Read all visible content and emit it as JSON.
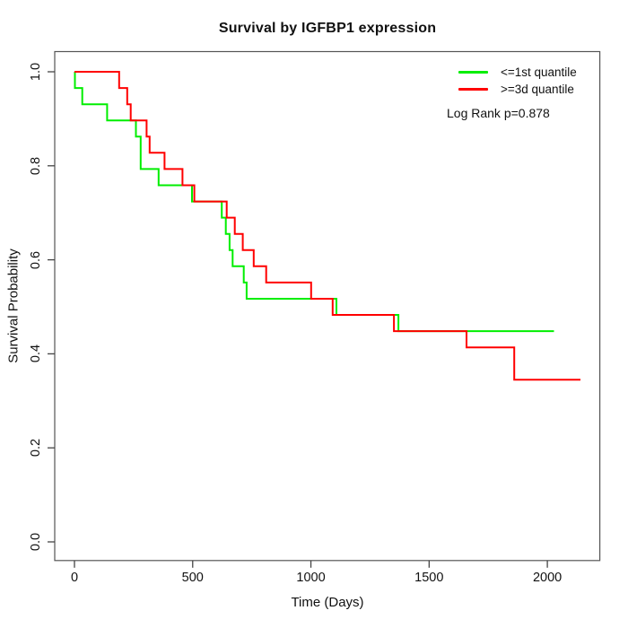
{
  "chart_data": {
    "type": "line",
    "chart_style": "kaplan-meier-step-survival",
    "title": "Survival by IGFBP1 expression",
    "xlabel": "Time (Days)",
    "ylabel": "Survival Probability",
    "x_ticks": [
      "0",
      "500",
      "1000",
      "1500",
      "2000"
    ],
    "x_tick_values": [
      0,
      500,
      1000,
      1500,
      2000
    ],
    "y_ticks": [
      "0.0",
      "0.2",
      "0.4",
      "0.6",
      "0.8",
      "1.0"
    ],
    "y_tick_values": [
      0,
      0.2,
      0.4,
      0.6,
      0.8,
      1.0
    ],
    "xlim_days": [
      -83,
      2320
    ],
    "ylim": [
      -0.04,
      1.04
    ],
    "grid": false,
    "legend_position": "top-right",
    "annotation": "Log Rank p=0.878",
    "legend": {
      "entries": [
        {
          "label": "<=1st quantile",
          "color": "#00ee00"
        },
        {
          "label": ">=3d quantile",
          "color": "#ff0000"
        }
      ]
    },
    "series": [
      {
        "name": "<=1st quantile",
        "color": "#00ee00",
        "start": [
          0,
          1.0
        ],
        "steps": [
          [
            2,
            0.9655
          ],
          [
            33,
            0.931
          ],
          [
            138,
            0.8966
          ],
          [
            260,
            0.8621
          ],
          [
            280,
            0.7931
          ],
          [
            356,
            0.7586
          ],
          [
            497,
            0.7241
          ],
          [
            623,
            0.6897
          ],
          [
            640,
            0.6552
          ],
          [
            656,
            0.6207
          ],
          [
            669,
            0.5862
          ],
          [
            716,
            0.5517
          ],
          [
            728,
            0.5172
          ],
          [
            1108,
            0.4828
          ],
          [
            1370,
            0.4483
          ]
        ],
        "end_time": 2028
      },
      {
        "name": ">=3d quantile",
        "color": "#ff0000",
        "start": [
          0,
          1.0
        ],
        "steps": [
          [
            189,
            0.9655
          ],
          [
            223,
            0.931
          ],
          [
            238,
            0.8966
          ],
          [
            305,
            0.8621
          ],
          [
            318,
            0.8276
          ],
          [
            381,
            0.7931
          ],
          [
            457,
            0.7586
          ],
          [
            507,
            0.7241
          ],
          [
            644,
            0.6897
          ],
          [
            678,
            0.6552
          ],
          [
            712,
            0.6207
          ],
          [
            758,
            0.5862
          ],
          [
            811,
            0.5517
          ],
          [
            1001,
            0.5172
          ],
          [
            1092,
            0.4828
          ],
          [
            1351,
            0.4483
          ],
          [
            1658,
            0.4138
          ],
          [
            1860,
            0.3448
          ]
        ],
        "end_time": 2140
      }
    ]
  }
}
